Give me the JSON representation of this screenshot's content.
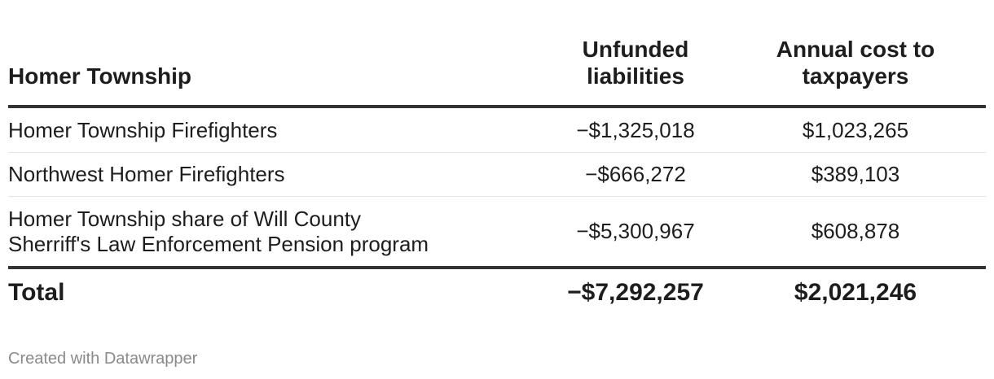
{
  "chart_data": {
    "type": "table",
    "columns": [
      "Homer Township",
      "Unfunded liabilities",
      "Annual cost to taxpayers"
    ],
    "rows": [
      {
        "name": "Homer Township Firefighters",
        "unfunded": "−$1,325,018",
        "annual": "$1,023,265"
      },
      {
        "name": "Northwest Homer Firefighters",
        "unfunded": "−$666,272",
        "annual": "$389,103"
      },
      {
        "name_line1": "Homer Township share of Will County",
        "name_line2": "Sherriff's Law Enforcement Pension program",
        "unfunded": "−$5,300,967",
        "annual": "$608,878"
      }
    ],
    "total": {
      "label": "Total",
      "unfunded": "−$7,292,257",
      "annual": "$2,021,246"
    }
  },
  "header": {
    "col1": "Homer Township",
    "col2_line1": "Unfunded",
    "col2_line2": "liabilities",
    "col3_line1": "Annual cost to",
    "col3_line2": "taxpayers"
  },
  "footer": {
    "credit": "Created with Datawrapper"
  }
}
